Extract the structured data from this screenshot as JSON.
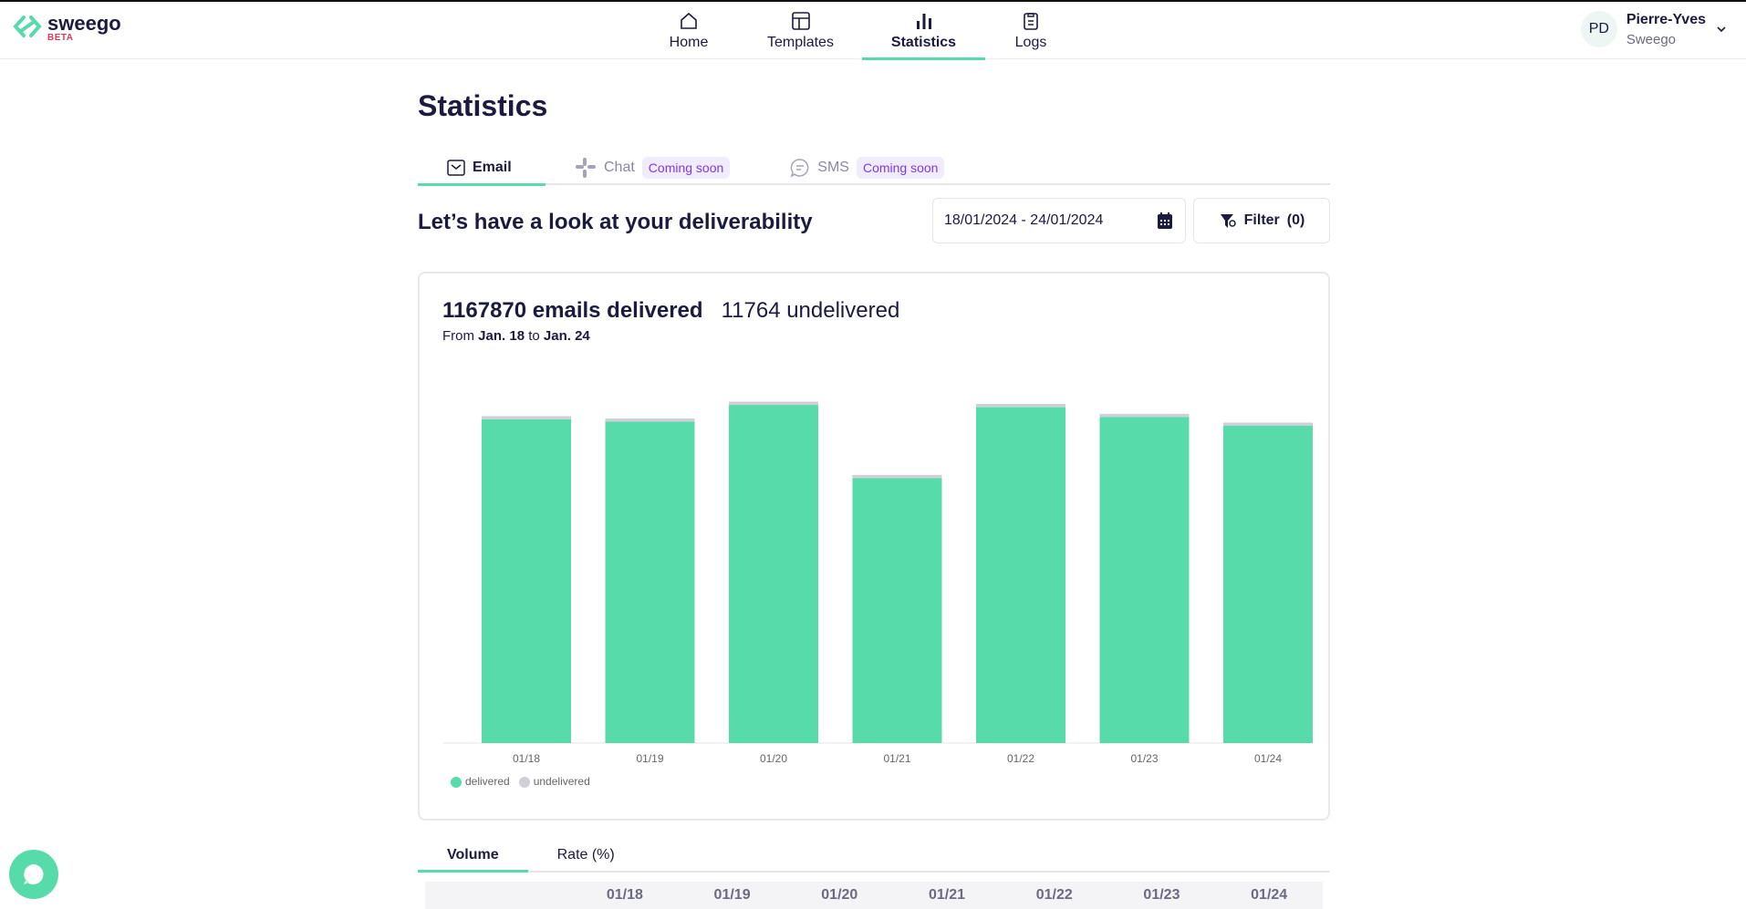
{
  "brand": {
    "name": "sweego",
    "tag": "BETA"
  },
  "nav": [
    {
      "label": "Home",
      "icon": "home-icon"
    },
    {
      "label": "Templates",
      "icon": "layout-icon"
    },
    {
      "label": "Statistics",
      "icon": "bar-chart-icon",
      "active": true
    },
    {
      "label": "Logs",
      "icon": "clipboard-icon"
    }
  ],
  "user": {
    "initials": "PD",
    "name": "Pierre-Yves",
    "org": "Sweego"
  },
  "page": {
    "title": "Statistics",
    "heading": "Let’s have a look at your deliverability"
  },
  "channel_tabs": [
    {
      "label": "Email"
    },
    {
      "label": "Chat",
      "badge": "Coming soon"
    },
    {
      "label": "SMS",
      "badge": "Coming soon"
    }
  ],
  "date_range": "18/01/2024 - 24/01/2024",
  "filter_label": "Filter",
  "filter_count": "(0)",
  "summary": {
    "delivered": "1167870 emails delivered",
    "undelivered": "11764 undelivered",
    "from": "From",
    "start": "Jan. 18",
    "to": "to",
    "end": "Jan. 24"
  },
  "colors": {
    "delivered": "#58dbab",
    "undelivered": "#cfcfd8",
    "accent": "#58dbab"
  },
  "chart_data": {
    "type": "bar",
    "stacked": true,
    "categories": [
      "01/18",
      "01/19",
      "01/20",
      "01/21",
      "01/22",
      "01/23",
      "01/24"
    ],
    "series": [
      {
        "name": "delivered",
        "values": [
          169720,
          168520,
          177320,
          138920,
          176120,
          170920,
          166350
        ]
      },
      {
        "name": "undelivered",
        "values": [
          1684,
          1680,
          1680,
          1680,
          1680,
          1680,
          1680
        ]
      }
    ],
    "ylim": [
      0,
      196000
    ],
    "grid": false,
    "legend": "bottom-left"
  },
  "view_tabs": [
    {
      "label": "Volume"
    },
    {
      "label": "Rate (%)"
    }
  ],
  "table_header": [
    "01/18",
    "01/19",
    "01/20",
    "01/21",
    "01/22",
    "01/23",
    "01/24"
  ]
}
